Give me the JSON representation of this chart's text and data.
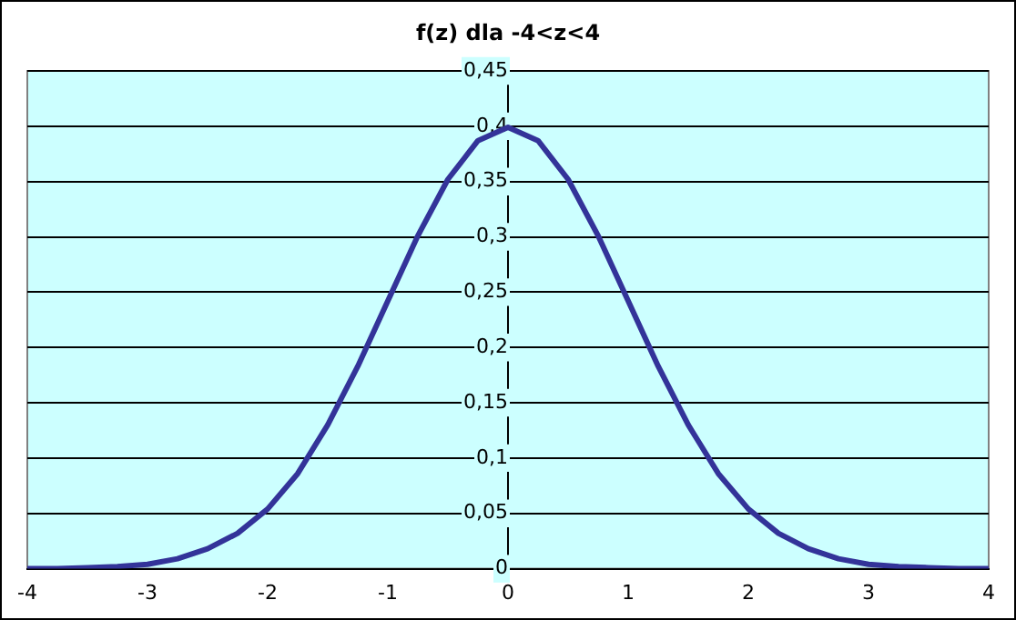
{
  "chart_data": {
    "type": "line",
    "title": "f(z) dla -4<z<4",
    "x": [
      -4,
      -3.75,
      -3.5,
      -3.25,
      -3,
      -2.75,
      -2.5,
      -2.25,
      -2,
      -1.75,
      -1.5,
      -1.25,
      -1,
      -0.75,
      -0.5,
      -0.25,
      0,
      0.25,
      0.5,
      0.75,
      1,
      1.25,
      1.5,
      1.75,
      2,
      2.25,
      2.5,
      2.75,
      3,
      3.25,
      3.5,
      3.75,
      4
    ],
    "series": [
      {
        "color": "#333399",
        "values": [
          0.0,
          0.0,
          0.001,
          0.002,
          0.004,
          0.009,
          0.018,
          0.032,
          0.054,
          0.086,
          0.13,
          0.183,
          0.242,
          0.301,
          0.352,
          0.387,
          0.399,
          0.387,
          0.352,
          0.301,
          0.242,
          0.183,
          0.13,
          0.086,
          0.054,
          0.032,
          0.018,
          0.009,
          0.004,
          0.002,
          0.001,
          0.0,
          0.0
        ]
      }
    ],
    "xlim": [
      -4,
      4
    ],
    "xticks": [
      -4,
      -3,
      -2,
      -1,
      0,
      1,
      2,
      3,
      4
    ],
    "ylim": [
      0,
      0.45
    ],
    "yticks": [
      0,
      {
        "value": 0.05,
        "label": "0,05"
      },
      {
        "value": 0.1,
        "label": "0,1"
      },
      {
        "value": 0.15,
        "label": "0,15"
      },
      {
        "value": 0.2,
        "label": "0,2"
      },
      {
        "value": 0.25,
        "label": "0,25"
      },
      {
        "value": 0.3,
        "label": "0,3"
      },
      {
        "value": 0.35,
        "label": "0,35"
      },
      {
        "value": 0.4,
        "label": "0,4"
      },
      {
        "value": 0.45,
        "label": "0,45"
      }
    ],
    "grid": "y",
    "legend": false,
    "marker": "none",
    "line_style": "solid"
  }
}
